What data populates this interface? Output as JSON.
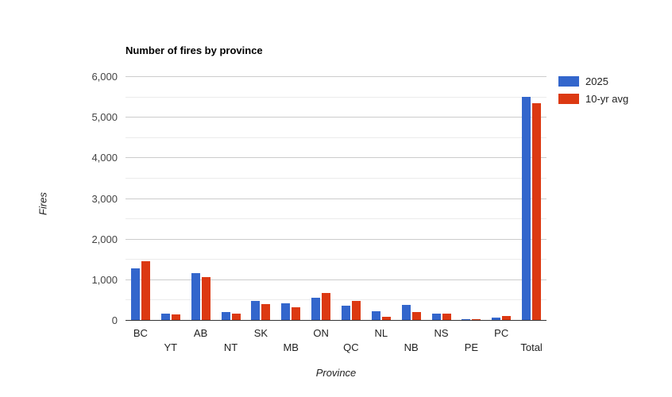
{
  "title": "Number of fires by province",
  "legend": {
    "position": "right",
    "items": [
      {
        "label": "2025",
        "color": "#3366CC"
      },
      {
        "label": "10-yr avg",
        "color": "#DC3912"
      }
    ]
  },
  "axes": {
    "y_title": "Fires",
    "x_title": "Province",
    "y_tick_labels": [
      "0",
      "1,000",
      "2,000",
      "3,000",
      "4,000",
      "5,000",
      "6,000"
    ]
  },
  "chart_data": {
    "type": "bar",
    "title": "Number of fires by province",
    "xlabel": "Province",
    "ylabel": "Fires",
    "categories": [
      "BC",
      "YT",
      "AB",
      "NT",
      "SK",
      "MB",
      "ON",
      "QC",
      "NL",
      "NB",
      "NS",
      "PE",
      "PC",
      "Total"
    ],
    "series": [
      {
        "name": "2025",
        "color": "#3366CC",
        "values": [
          1280,
          150,
          1150,
          190,
          470,
          410,
          550,
          360,
          210,
          370,
          150,
          25,
          60,
          5500
        ]
      },
      {
        "name": "10-yr avg",
        "color": "#DC3912",
        "values": [
          1440,
          130,
          1050,
          160,
          400,
          320,
          670,
          470,
          80,
          200,
          160,
          15,
          90,
          5330
        ]
      }
    ],
    "ylim": [
      0,
      6000
    ],
    "ytick_step": 1000,
    "minor_gridline_step": 500,
    "grid": true,
    "legend_position": "right",
    "gridline_color_major": "#cccccc",
    "gridline_color_minor": "#ebebeb",
    "axis_line_color": "#333333"
  }
}
